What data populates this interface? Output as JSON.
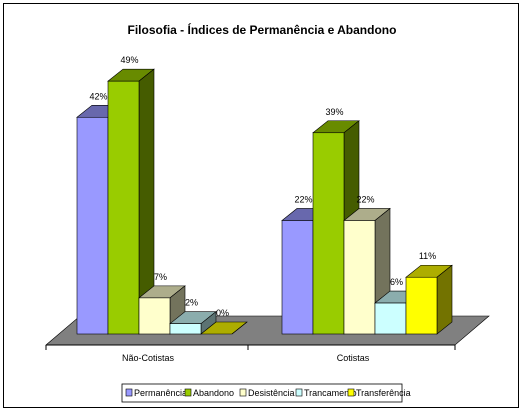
{
  "chart_data": {
    "type": "bar",
    "title": "Filosofia - Índices de Permanência e Abandono",
    "categories": [
      "Não-Cotistas",
      "Cotistas"
    ],
    "series": [
      {
        "name": "Permanência",
        "values": [
          42,
          22
        ],
        "color": "#9999ff"
      },
      {
        "name": "Abandono",
        "values": [
          49,
          39
        ],
        "color": "#99cc00"
      },
      {
        "name": "Desistência",
        "values": [
          7,
          22
        ],
        "color": "#ffffcc"
      },
      {
        "name": "Trancamento",
        "values": [
          2,
          6
        ],
        "color": "#ccffff"
      },
      {
        "name": "Transferência",
        "values": [
          0,
          11
        ],
        "color": "#ffff00"
      }
    ],
    "data_labels": [
      [
        "42%",
        "22%"
      ],
      [
        "49%",
        "39%"
      ],
      [
        "7%",
        "22%"
      ],
      [
        "2%",
        "6%"
      ],
      [
        "0%",
        "11%"
      ]
    ],
    "ylim": [
      0,
      50
    ],
    "grid": false,
    "legend_position": "bottom",
    "floor_color": "#808080"
  }
}
